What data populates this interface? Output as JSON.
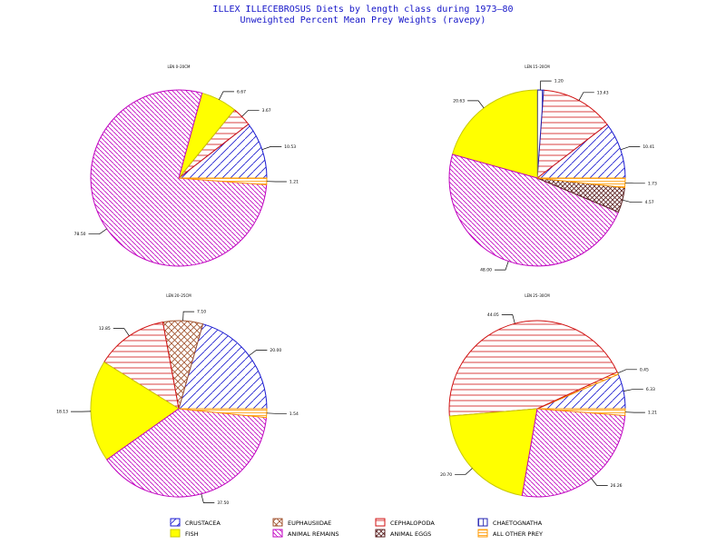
{
  "title": "ILLEX ILLECEBROSUS Diets by length class during 1973–80",
  "subtitle": "Unweighted Percent Mean Prey Weights (ravepy)",
  "colors": {
    "crustacea": "#1a1ad0",
    "fish": "#ffff00",
    "euphausiidae": "#a0522d",
    "animal_remains": "#c000c0",
    "cephalopoda": "#d01010",
    "animal_eggs": "#5a1f1f",
    "chaetognatha": "#2020b0",
    "all_other_prey": "#ff9900",
    "label_text": "#1515c8"
  },
  "legend": [
    {
      "label": "CRUSTACEA",
      "key": "crustacea"
    },
    {
      "label": "EUPHAUSIIDAE",
      "key": "euphausiidae"
    },
    {
      "label": "CEPHALOPODA",
      "key": "cephalopoda"
    },
    {
      "label": "CHAETOGNATHA",
      "key": "chaetognatha"
    },
    {
      "label": "FISH",
      "key": "fish"
    },
    {
      "label": "ANIMAL REMAINS",
      "key": "animal_remains"
    },
    {
      "label": "ANIMAL EGGS",
      "key": "animal_eggs"
    },
    {
      "label": "ALL OTHER PREY",
      "key": "all_other_prey"
    }
  ],
  "chart_data": [
    {
      "type": "pie",
      "title": "LEN 0–20CM",
      "slices": [
        {
          "category": "crustacea",
          "value": 10.53,
          "label": "10.53"
        },
        {
          "category": "cephalopoda",
          "value": 3.67,
          "label": "3.67"
        },
        {
          "category": "fish",
          "value": 6.67,
          "label": "6.67"
        },
        {
          "category": "animal_remains",
          "value": 78.5,
          "label": "78.50"
        },
        {
          "category": "all_other_prey",
          "value": 1.21,
          "label": "1.21"
        }
      ]
    },
    {
      "type": "pie",
      "title": "LEN 15–20CM",
      "slices": [
        {
          "category": "crustacea",
          "value": 10.41,
          "label": "10.41"
        },
        {
          "category": "cephalopoda",
          "value": 13.43,
          "label": "13.43"
        },
        {
          "category": "chaetognatha",
          "value": 1.2,
          "label": "1.20"
        },
        {
          "category": "fish",
          "value": 20.63,
          "label": "20.63"
        },
        {
          "category": "animal_remains",
          "value": 48.0,
          "label": "48.00"
        },
        {
          "category": "animal_eggs",
          "value": 4.57,
          "label": "4.57"
        },
        {
          "category": "all_other_prey",
          "value": 1.73,
          "label": "1.73"
        }
      ]
    },
    {
      "type": "pie",
      "title": "LEN 20–25CM",
      "slices": [
        {
          "category": "crustacea",
          "value": 20.0,
          "label": "20.00"
        },
        {
          "category": "euphausiidae",
          "value": 7.1,
          "label": "7.10"
        },
        {
          "category": "cephalopoda",
          "value": 12.85,
          "label": "12.85"
        },
        {
          "category": "fish",
          "value": 18.13,
          "label": "18.13"
        },
        {
          "category": "animal_remains",
          "value": 37.5,
          "label": "37.50"
        },
        {
          "category": "all_other_prey",
          "value": 1.54,
          "label": "1.54"
        }
      ]
    },
    {
      "type": "pie",
      "title": "LEN 25–30CM",
      "slices": [
        {
          "category": "crustacea",
          "value": 6.33,
          "label": "6.33"
        },
        {
          "category": "all_other_prey",
          "value": 0.45,
          "label": "0.45"
        },
        {
          "category": "cephalopoda",
          "value": 44.05,
          "label": "44.05"
        },
        {
          "category": "fish",
          "value": 20.7,
          "label": "20.70"
        },
        {
          "category": "animal_remains",
          "value": 26.26,
          "label": "26.26"
        },
        {
          "category": "all_other_prey",
          "value": 1.21,
          "label": "1.21"
        }
      ]
    }
  ]
}
